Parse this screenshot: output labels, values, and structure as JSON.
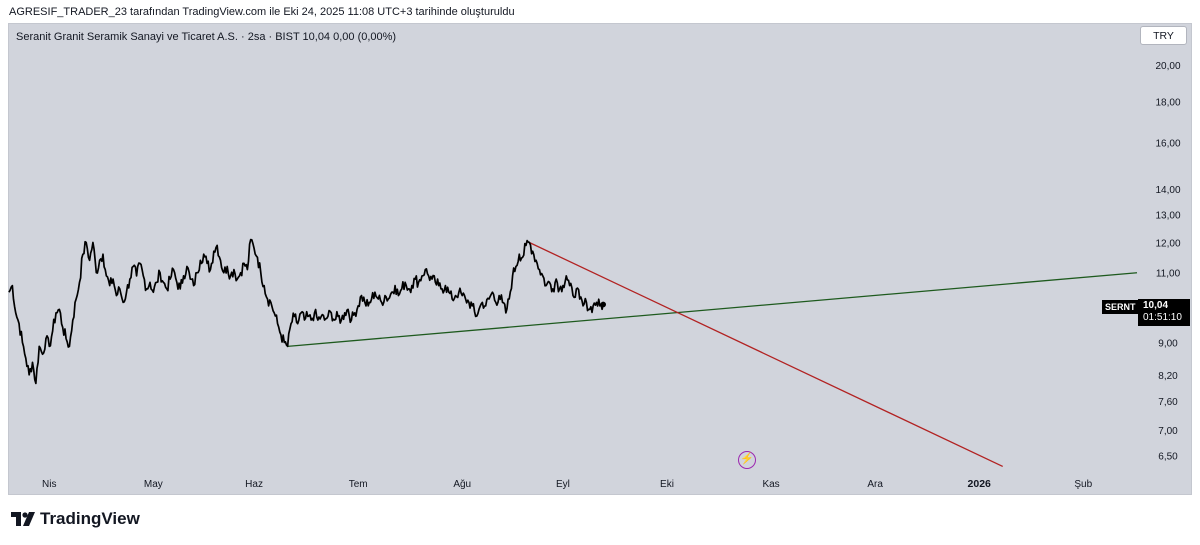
{
  "header": {
    "credit": "AGRESIF_TRADER_23 tarafından TradingView.com ile Eki 24, 2025 11:08 UTC+3 tarihinde oluşturuldu"
  },
  "legend": {
    "text": "Seranit Granit Seramik Sanayi ve Ticaret A.S. · 2sa · BIST  10,04  0,00 (0,00%)"
  },
  "currency": "TRY",
  "price_label": {
    "ticker": "SERNT",
    "price": "10,04",
    "countdown": "01:51:10"
  },
  "brand": {
    "name": "TradingView",
    "logo": "tradingview-logo"
  },
  "icons": {
    "bolt": "⚡"
  },
  "colors": {
    "background": "#d1d4dc",
    "price_line": "#000000",
    "support_line": "#1e5a1e",
    "resistance_line": "#b22222",
    "accent": "#9c27b0"
  },
  "chart_data": {
    "type": "line",
    "scale": "log",
    "title": "Seranit Granit Seramik Sanayi ve Ticaret A.S. · 2sa · BIST",
    "ylim": [
      6.2,
      22.5
    ],
    "y_ticks": [
      {
        "value": 20.0,
        "label": "20,00"
      },
      {
        "value": 18.0,
        "label": "18,00"
      },
      {
        "value": 16.0,
        "label": "16,00"
      },
      {
        "value": 14.0,
        "label": "14,00"
      },
      {
        "value": 13.0,
        "label": "13,00"
      },
      {
        "value": 12.0,
        "label": "12,00"
      },
      {
        "value": 11.0,
        "label": "11,00"
      },
      {
        "value": 9.0,
        "label": "9,00"
      },
      {
        "value": 8.2,
        "label": "8,20"
      },
      {
        "value": 7.6,
        "label": "7,60"
      },
      {
        "value": 7.0,
        "label": "7,00"
      },
      {
        "value": 6.5,
        "label": "6,50"
      }
    ],
    "x_ticks": [
      {
        "t": 6,
        "label": "Nis",
        "bold": false
      },
      {
        "t": 37,
        "label": "May",
        "bold": false
      },
      {
        "t": 67,
        "label": "Haz",
        "bold": false
      },
      {
        "t": 98,
        "label": "Tem",
        "bold": false
      },
      {
        "t": 129,
        "label": "Ağu",
        "bold": false
      },
      {
        "t": 159,
        "label": "Eyl",
        "bold": false
      },
      {
        "t": 190,
        "label": "Eki",
        "bold": false
      },
      {
        "t": 221,
        "label": "Kas",
        "bold": false
      },
      {
        "t": 252,
        "label": "Ara",
        "bold": false
      },
      {
        "t": 283,
        "label": "2026",
        "bold": true
      },
      {
        "t": 314,
        "label": "Şub",
        "bold": false
      }
    ],
    "x_range": [
      -6,
      330
    ],
    "series": [
      {
        "name": "SERNT",
        "points": [
          [
            -6,
            10.4
          ],
          [
            -5,
            10.6
          ],
          [
            -4,
            9.8
          ],
          [
            -3,
            9.5
          ],
          [
            -2,
            9.0
          ],
          [
            -1,
            8.6
          ],
          [
            0,
            8.2
          ],
          [
            1,
            8.5
          ],
          [
            2,
            8.0
          ],
          [
            3,
            8.9
          ],
          [
            4,
            8.7
          ],
          [
            5,
            9.1
          ],
          [
            6,
            8.9
          ],
          [
            7,
            9.3
          ],
          [
            8,
            9.8
          ],
          [
            9,
            9.9
          ],
          [
            10,
            9.4
          ],
          [
            11,
            9.1
          ],
          [
            12,
            8.9
          ],
          [
            13,
            9.6
          ],
          [
            14,
            10.2
          ],
          [
            15,
            10.7
          ],
          [
            16,
            11.6
          ],
          [
            17,
            12.0
          ],
          [
            18,
            11.4
          ],
          [
            19,
            12.0
          ],
          [
            20,
            11.0
          ],
          [
            21,
            11.4
          ],
          [
            22,
            11.6
          ],
          [
            23,
            10.9
          ],
          [
            24,
            10.6
          ],
          [
            25,
            10.8
          ],
          [
            26,
            10.3
          ],
          [
            27,
            10.5
          ],
          [
            28,
            10.1
          ],
          [
            29,
            10.4
          ],
          [
            30,
            10.8
          ],
          [
            31,
            11.2
          ],
          [
            32,
            10.9
          ],
          [
            33,
            11.3
          ],
          [
            34,
            10.9
          ],
          [
            35,
            10.5
          ],
          [
            36,
            10.7
          ],
          [
            37,
            10.4
          ],
          [
            38,
            10.7
          ],
          [
            39,
            11.0
          ],
          [
            40,
            10.7
          ],
          [
            41,
            10.5
          ],
          [
            42,
            10.8
          ],
          [
            43,
            11.1
          ],
          [
            44,
            10.7
          ],
          [
            45,
            10.5
          ],
          [
            46,
            10.9
          ],
          [
            47,
            11.2
          ],
          [
            48,
            10.8
          ],
          [
            49,
            10.6
          ],
          [
            50,
            11.0
          ],
          [
            51,
            11.4
          ],
          [
            52,
            11.6
          ],
          [
            53,
            11.3
          ],
          [
            54,
            11.1
          ],
          [
            55,
            11.7
          ],
          [
            56,
            11.9
          ],
          [
            57,
            11.4
          ],
          [
            58,
            11.0
          ],
          [
            59,
            11.2
          ],
          [
            60,
            10.9
          ],
          [
            61,
            11.1
          ],
          [
            62,
            10.8
          ],
          [
            63,
            11.0
          ],
          [
            64,
            11.3
          ],
          [
            65,
            11.1
          ],
          [
            66,
            12.1
          ],
          [
            67,
            11.8
          ],
          [
            68,
            11.5
          ],
          [
            69,
            11.0
          ],
          [
            70,
            10.6
          ],
          [
            71,
            10.2
          ],
          [
            72,
            10.1
          ],
          [
            73,
            9.8
          ],
          [
            74,
            9.5
          ],
          [
            75,
            9.2
          ],
          [
            76,
            9.0
          ],
          [
            77,
            8.9
          ],
          [
            78,
            9.5
          ],
          [
            79,
            9.7
          ],
          [
            80,
            9.5
          ],
          [
            81,
            9.8
          ],
          [
            82,
            9.6
          ],
          [
            83,
            9.7
          ],
          [
            84,
            9.6
          ],
          [
            85,
            9.8
          ],
          [
            86,
            9.6
          ],
          [
            87,
            9.7
          ],
          [
            88,
            9.6
          ],
          [
            89,
            9.7
          ],
          [
            90,
            9.8
          ],
          [
            91,
            9.6
          ],
          [
            92,
            9.7
          ],
          [
            93,
            9.6
          ],
          [
            94,
            9.8
          ],
          [
            95,
            9.9
          ],
          [
            96,
            9.6
          ],
          [
            97,
            9.8
          ],
          [
            98,
            10.0
          ],
          [
            99,
            10.3
          ],
          [
            100,
            10.1
          ],
          [
            101,
            10.0
          ],
          [
            102,
            10.2
          ],
          [
            103,
            10.4
          ],
          [
            104,
            10.2
          ],
          [
            105,
            10.1
          ],
          [
            106,
            10.3
          ],
          [
            107,
            10.2
          ],
          [
            108,
            10.4
          ],
          [
            109,
            10.6
          ],
          [
            110,
            10.3
          ],
          [
            111,
            10.5
          ],
          [
            112,
            10.7
          ],
          [
            113,
            10.5
          ],
          [
            114,
            10.6
          ],
          [
            115,
            10.8
          ],
          [
            116,
            10.7
          ],
          [
            117,
            10.9
          ],
          [
            118,
            11.1
          ],
          [
            119,
            10.9
          ],
          [
            120,
            10.8
          ],
          [
            121,
            10.7
          ],
          [
            122,
            10.6
          ],
          [
            123,
            10.5
          ],
          [
            124,
            10.6
          ],
          [
            125,
            10.4
          ],
          [
            126,
            10.2
          ],
          [
            127,
            10.3
          ],
          [
            128,
            10.4
          ],
          [
            129,
            10.3
          ],
          [
            130,
            10.2
          ],
          [
            131,
            10.1
          ],
          [
            132,
            10.0
          ],
          [
            133,
            9.7
          ],
          [
            134,
            9.9
          ],
          [
            135,
            10.1
          ],
          [
            136,
            10.0
          ],
          [
            137,
            10.2
          ],
          [
            138,
            10.4
          ],
          [
            139,
            10.1
          ],
          [
            140,
            10.3
          ],
          [
            141,
            10.1
          ],
          [
            142,
            9.8
          ],
          [
            143,
            10.2
          ],
          [
            144,
            10.9
          ],
          [
            145,
            11.2
          ],
          [
            146,
            11.6
          ],
          [
            147,
            11.5
          ],
          [
            148,
            11.9
          ],
          [
            149,
            12.0
          ],
          [
            150,
            11.7
          ],
          [
            151,
            11.4
          ],
          [
            152,
            11.1
          ],
          [
            153,
            10.9
          ],
          [
            154,
            10.6
          ],
          [
            155,
            10.7
          ],
          [
            156,
            10.5
          ],
          [
            157,
            10.8
          ],
          [
            158,
            10.5
          ],
          [
            159,
            10.6
          ],
          [
            160,
            10.9
          ],
          [
            161,
            10.6
          ],
          [
            162,
            10.3
          ],
          [
            163,
            10.5
          ],
          [
            164,
            10.2
          ],
          [
            165,
            10.0
          ],
          [
            166,
            10.1
          ],
          [
            167,
            9.9
          ],
          [
            168,
            10.0
          ],
          [
            169,
            10.1
          ],
          [
            170,
            10.0
          ],
          [
            171,
            10.04
          ]
        ]
      }
    ],
    "trendlines": [
      {
        "name": "support",
        "from": [
          77,
          8.9
        ],
        "to": [
          330,
          11.0
        ]
      },
      {
        "name": "resistance",
        "from": [
          149,
          12.0
        ],
        "to": [
          290,
          6.3
        ]
      }
    ],
    "last_price": 10.04
  }
}
